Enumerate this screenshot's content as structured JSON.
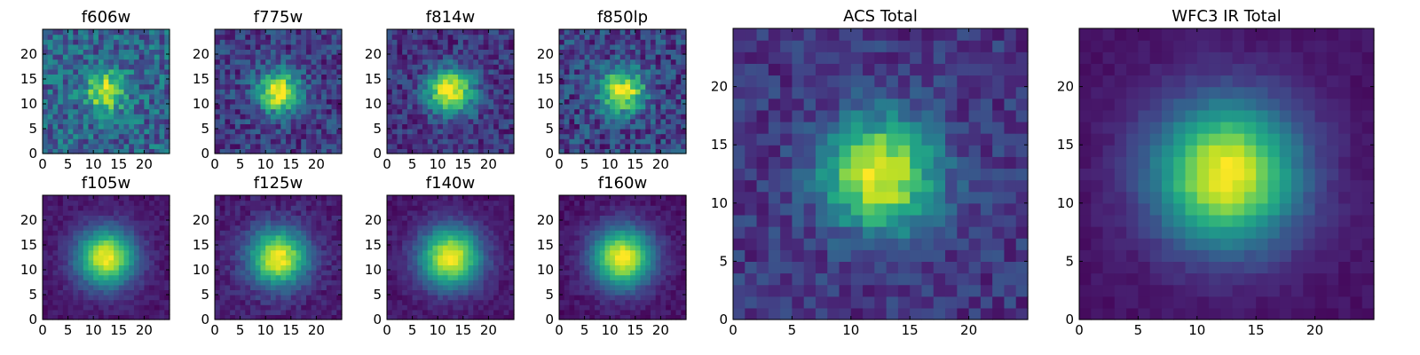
{
  "chart_data": [
    {
      "type": "heatmap",
      "title": "f606w",
      "x_ticks": [
        0,
        5,
        10,
        15,
        20
      ],
      "y_ticks": [
        0,
        5,
        10,
        15,
        20
      ],
      "xlim": [
        0,
        25
      ],
      "ylim": [
        0,
        25
      ],
      "grid_size": 25,
      "peak_center": [
        12.5,
        12.5
      ],
      "peak_sigma": 2.6,
      "noise_level": 0.2,
      "background": 0.32
    },
    {
      "type": "heatmap",
      "title": "f775w",
      "x_ticks": [
        0,
        5,
        10,
        15,
        20
      ],
      "y_ticks": [
        0,
        5,
        10,
        15,
        20
      ],
      "xlim": [
        0,
        25
      ],
      "ylim": [
        0,
        25
      ],
      "grid_size": 25,
      "peak_center": [
        12.5,
        12.5
      ],
      "peak_sigma": 2.9,
      "noise_level": 0.16,
      "background": 0.18
    },
    {
      "type": "heatmap",
      "title": "f814w",
      "x_ticks": [
        0,
        5,
        10,
        15,
        20
      ],
      "y_ticks": [
        0,
        5,
        10,
        15,
        20
      ],
      "xlim": [
        0,
        25
      ],
      "ylim": [
        0,
        25
      ],
      "grid_size": 25,
      "peak_center": [
        12.5,
        12.5
      ],
      "peak_sigma": 3.2,
      "noise_level": 0.14,
      "background": 0.15
    },
    {
      "type": "heatmap",
      "title": "f850lp",
      "x_ticks": [
        0,
        5,
        10,
        15,
        20
      ],
      "y_ticks": [
        0,
        5,
        10,
        15,
        20
      ],
      "xlim": [
        0,
        25
      ],
      "ylim": [
        0,
        25
      ],
      "grid_size": 25,
      "peak_center": [
        12.5,
        12.5
      ],
      "peak_sigma": 3.0,
      "noise_level": 0.18,
      "background": 0.2
    },
    {
      "type": "heatmap",
      "title": "f105w",
      "x_ticks": [
        0,
        5,
        10,
        15,
        20
      ],
      "y_ticks": [
        0,
        5,
        10,
        15,
        20
      ],
      "xlim": [
        0,
        25
      ],
      "ylim": [
        0,
        25
      ],
      "grid_size": 25,
      "peak_center": [
        12.5,
        12.5
      ],
      "peak_sigma": 4.0,
      "noise_level": 0.05,
      "background": 0.06
    },
    {
      "type": "heatmap",
      "title": "f125w",
      "x_ticks": [
        0,
        5,
        10,
        15,
        20
      ],
      "y_ticks": [
        0,
        5,
        10,
        15,
        20
      ],
      "xlim": [
        0,
        25
      ],
      "ylim": [
        0,
        25
      ],
      "grid_size": 25,
      "peak_center": [
        12.5,
        12.5
      ],
      "peak_sigma": 4.0,
      "noise_level": 0.07,
      "background": 0.08
    },
    {
      "type": "heatmap",
      "title": "f140w",
      "x_ticks": [
        0,
        5,
        10,
        15,
        20
      ],
      "y_ticks": [
        0,
        5,
        10,
        15,
        20
      ],
      "xlim": [
        0,
        25
      ],
      "ylim": [
        0,
        25
      ],
      "grid_size": 25,
      "peak_center": [
        12.5,
        12.5
      ],
      "peak_sigma": 4.2,
      "noise_level": 0.05,
      "background": 0.06
    },
    {
      "type": "heatmap",
      "title": "f160w",
      "x_ticks": [
        0,
        5,
        10,
        15,
        20
      ],
      "y_ticks": [
        0,
        5,
        10,
        15,
        20
      ],
      "xlim": [
        0,
        25
      ],
      "ylim": [
        0,
        25
      ],
      "grid_size": 25,
      "peak_center": [
        12.5,
        12.5
      ],
      "peak_sigma": 4.2,
      "noise_level": 0.05,
      "background": 0.05
    },
    {
      "type": "heatmap",
      "title": "ACS Total",
      "x_ticks": [
        0,
        5,
        10,
        15,
        20
      ],
      "y_ticks": [
        0,
        5,
        10,
        15,
        20
      ],
      "xlim": [
        0,
        25
      ],
      "ylim": [
        0,
        25
      ],
      "grid_size": 25,
      "peak_center": [
        12.5,
        12.5
      ],
      "peak_sigma": 3.3,
      "noise_level": 0.11,
      "background": 0.16
    },
    {
      "type": "heatmap",
      "title": "WFC3 IR Total",
      "x_ticks": [
        0,
        5,
        10,
        15,
        20
      ],
      "y_ticks": [
        0,
        5,
        10,
        15,
        20
      ],
      "xlim": [
        0,
        25
      ],
      "ylim": [
        0,
        25
      ],
      "grid_size": 25,
      "peak_center": [
        12.5,
        12.5
      ],
      "peak_sigma": 4.3,
      "noise_level": 0.03,
      "background": 0.05
    }
  ],
  "colormap": "viridis",
  "colors": {
    "axes_edge": "#000000",
    "background": "#ffffff"
  }
}
